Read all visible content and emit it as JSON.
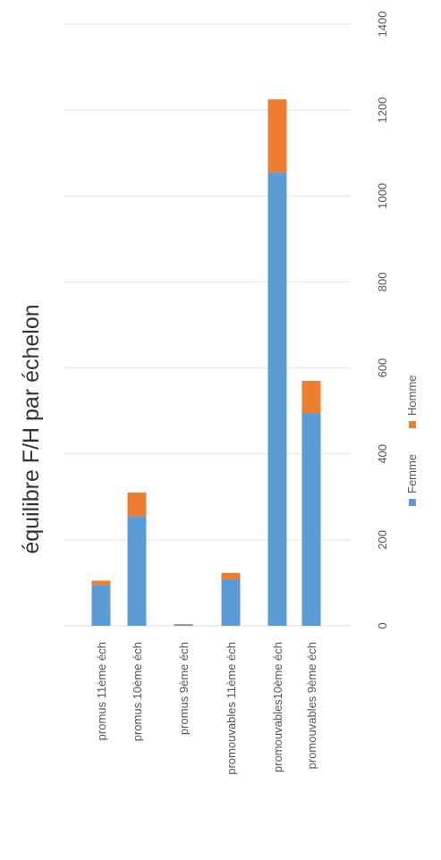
{
  "chart_data": {
    "type": "bar",
    "stacked": true,
    "orientation": "vertical-bars-rotated-page",
    "title": "équilibre F/H par échelon",
    "categories": [
      "promus 11ème éch",
      "promus 10ème éch",
      "promus 9ème éch",
      "promouvables 11ème éch",
      "promouvables10ème éch",
      "promouvables 9ème éch"
    ],
    "series": [
      {
        "name": "Femme",
        "color": "#5b9bd5",
        "values": [
          95,
          255,
          3,
          108,
          1055,
          495
        ]
      },
      {
        "name": "Homme",
        "color": "#ed7d31",
        "values": [
          10,
          55,
          1,
          15,
          170,
          75
        ]
      }
    ],
    "value_axis": {
      "min": 0,
      "max": 1400,
      "step": 200,
      "ticks": [
        "0",
        "200",
        "400",
        "600",
        "800",
        "1000",
        "1200",
        "1400"
      ]
    },
    "grid": true,
    "legend": "bottom"
  }
}
